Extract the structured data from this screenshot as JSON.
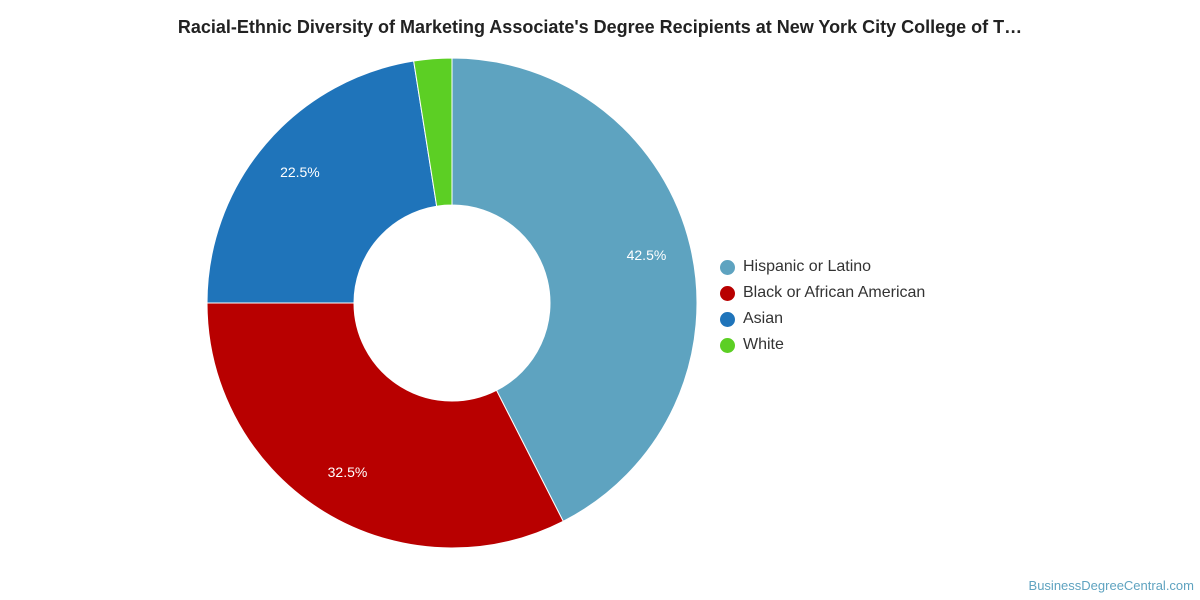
{
  "title": "Racial-Ethnic Diversity of Marketing Associate's Degree Recipients at New York City College of T…",
  "source": "BusinessDegreeCentral.com",
  "chart_data": {
    "type": "pie",
    "donut": true,
    "title": "Racial-Ethnic Diversity of Marketing Associate's Degree Recipients at New York City College of T…",
    "legend_position": "right",
    "slices": [
      {
        "label": "Hispanic or Latino",
        "value": 42.5,
        "value_label": "42.5%",
        "color": "#5ea3c0"
      },
      {
        "label": "Black or African American",
        "value": 32.5,
        "value_label": "32.5%",
        "color": "#b80000"
      },
      {
        "label": "Asian",
        "value": 22.5,
        "value_label": "22.5%",
        "color": "#1f74ba"
      },
      {
        "label": "White",
        "value": 2.5,
        "value_label": "",
        "color": "#5ccf24"
      }
    ]
  }
}
